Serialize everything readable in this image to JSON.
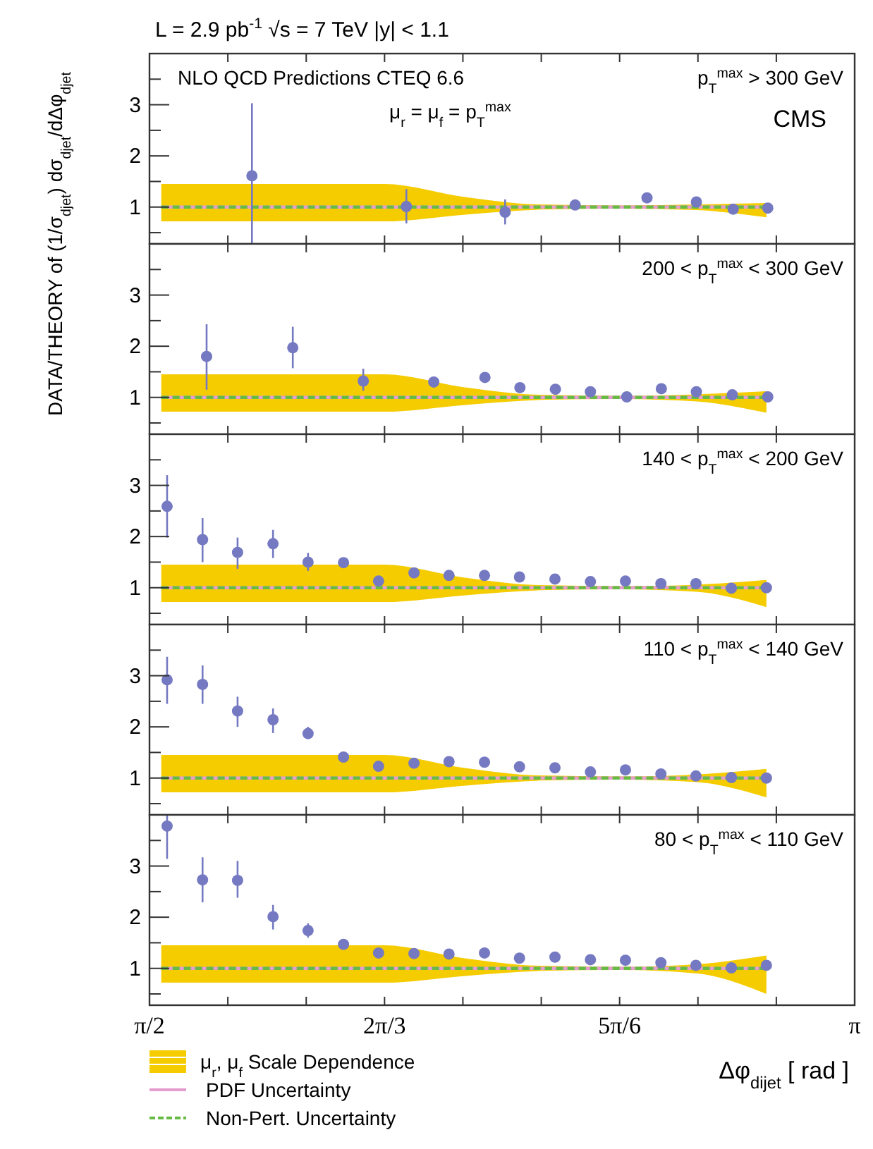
{
  "chart_data": [
    {
      "type": "scatter",
      "title": "L = 2.9 pb$^{-1}$   √s = 7 TeV   |y| < 1.1",
      "ylabel": "DATA/THEORY of (1/σ$_{djet}$) dσ$_{djet}$/dΔφ$_{djet}$",
      "annotations": [
        "NLO QCD Predictions CTEQ 6.6",
        "μ$_{r}$ = μ$_{f}$ = p$_{T}$$^{max}$",
        "p$_{T}$$^{max}$ > 300 GeV",
        "CMS"
      ],
      "tick_labels": "y",
      "xlim": [
        1.5708,
        3.1416
      ],
      "xticks": [
        {
          "value": 1.5708,
          "label": null
        },
        {
          "value": 1.7453,
          "label": null
        },
        {
          "value": 1.9199,
          "label": null
        },
        {
          "value": 2.0944,
          "label": null
        },
        {
          "value": 2.2689,
          "label": null
        },
        {
          "value": 2.4435,
          "label": null
        },
        {
          "value": 2.618,
          "label": null
        },
        {
          "value": 2.7925,
          "label": null
        },
        {
          "value": 2.9671,
          "label": null
        },
        {
          "value": 3.1416,
          "label": null
        }
      ],
      "ylim": [
        0.28,
        4.0
      ],
      "yticks": [
        {
          "value": 0.5,
          "label": null
        },
        1,
        {
          "value": 1.5,
          "label": null
        },
        2,
        {
          "value": 2.5,
          "label": null
        },
        3,
        {
          "value": 3.5,
          "label": null
        }
      ],
      "series": [
        {
          "type": "line",
          "color": "#f5cc00",
          "x": [
            1.597,
            2.094,
            2.27,
            2.44,
            2.62,
            2.79,
            2.945
          ],
          "values": [
            null,
            null,
            null,
            null,
            null,
            null,
            null
          ],
          "lower": [
            0.72,
            0.72,
            0.85,
            0.95,
            0.97,
            0.94,
            0.8
          ],
          "upper": [
            1.45,
            1.45,
            1.2,
            1.05,
            1.03,
            1.05,
            1.08
          ]
        },
        {
          "type": "line",
          "color": "#e59ccf",
          "x": [
            1.597,
            2.094,
            2.27,
            2.44,
            2.62,
            2.79,
            2.945
          ],
          "values": [
            1,
            1,
            1,
            1,
            1,
            1,
            1
          ]
        },
        {
          "type": "line",
          "color": "#66bb44",
          "line_style": "dashed",
          "x": [
            1.597,
            2.094,
            2.27,
            2.44,
            2.62,
            2.79,
            2.945
          ],
          "values": [
            1,
            1,
            1,
            1,
            1,
            1,
            1
          ]
        },
        {
          "type": "scatter",
          "marker": "circle",
          "color": "#7479c2",
          "x": [
            1.799,
            2.143,
            2.363,
            2.519,
            2.679,
            2.789,
            2.871,
            2.948
          ],
          "values": [
            1.61,
            1.01,
            0.9,
            1.04,
            1.18,
            1.1,
            0.96,
            0.98
          ],
          "errors": [
            [
              0.28,
              3.03
            ],
            [
              0.68,
              1.35
            ],
            [
              0.66,
              1.15
            ],
            [
              0.95,
              1.15
            ],
            null,
            null,
            null,
            null
          ]
        }
      ]
    },
    {
      "type": "scatter",
      "annotations": [
        "200 < p$_{T}$$^{max}$ < 300 GeV"
      ],
      "tick_labels": "y",
      "xlim": [
        1.5708,
        3.1416
      ],
      "xticks": [
        {
          "value": 1.5708,
          "label": null
        },
        {
          "value": 1.7453,
          "label": null
        },
        {
          "value": 1.9199,
          "label": null
        },
        {
          "value": 2.0944,
          "label": null
        },
        {
          "value": 2.2689,
          "label": null
        },
        {
          "value": 2.4435,
          "label": null
        },
        {
          "value": 2.618,
          "label": null
        },
        {
          "value": 2.7925,
          "label": null
        },
        {
          "value": 2.9671,
          "label": null
        },
        {
          "value": 3.1416,
          "label": null
        }
      ],
      "ylim": [
        0.28,
        4.0
      ],
      "yticks": [
        {
          "value": 0.5,
          "label": null
        },
        1,
        {
          "value": 1.5,
          "label": null
        },
        2,
        {
          "value": 2.5,
          "label": null
        },
        3,
        {
          "value": 3.5,
          "label": null
        }
      ],
      "series": [
        {
          "type": "line",
          "color": "#f5cc00",
          "x": [
            1.597,
            2.094,
            2.27,
            2.44,
            2.62,
            2.79,
            2.945
          ],
          "values": [
            null,
            null,
            null,
            null,
            null,
            null,
            null
          ],
          "lower": [
            0.72,
            0.72,
            0.85,
            0.95,
            0.97,
            0.92,
            0.7
          ],
          "upper": [
            1.45,
            1.45,
            1.2,
            1.05,
            1.03,
            1.06,
            1.12
          ]
        },
        {
          "type": "line",
          "color": "#e59ccf",
          "x": [
            1.597,
            2.094,
            2.27,
            2.44,
            2.62,
            2.79,
            2.945
          ],
          "values": [
            1,
            1,
            1,
            1,
            1,
            1,
            1
          ]
        },
        {
          "type": "line",
          "color": "#66bb44",
          "line_style": "dashed",
          "x": [
            1.597,
            2.094,
            2.27,
            2.44,
            2.62,
            2.79,
            2.945
          ],
          "values": [
            1,
            1,
            1,
            1,
            1,
            1,
            1
          ]
        },
        {
          "type": "scatter",
          "marker": "circle",
          "color": "#7479c2",
          "x": [
            1.698,
            1.89,
            2.047,
            2.204,
            2.318,
            2.396,
            2.475,
            2.553,
            2.634,
            2.711,
            2.789,
            2.869,
            2.948
          ],
          "values": [
            1.8,
            1.97,
            1.32,
            1.3,
            1.39,
            1.19,
            1.16,
            1.11,
            1.01,
            1.17,
            1.11,
            1.05,
            1.01
          ],
          "errors": [
            [
              1.15,
              2.43
            ],
            [
              1.57,
              2.38
            ],
            [
              1.13,
              1.56
            ],
            null,
            null,
            null,
            null,
            null,
            null,
            null,
            null,
            null,
            null
          ]
        }
      ]
    },
    {
      "type": "scatter",
      "annotations": [
        "140 < p$_{T}$$^{max}$ < 200 GeV"
      ],
      "tick_labels": "y",
      "xlim": [
        1.5708,
        3.1416
      ],
      "xticks": [
        {
          "value": 1.5708,
          "label": null
        },
        {
          "value": 1.7453,
          "label": null
        },
        {
          "value": 1.9199,
          "label": null
        },
        {
          "value": 2.0944,
          "label": null
        },
        {
          "value": 2.2689,
          "label": null
        },
        {
          "value": 2.4435,
          "label": null
        },
        {
          "value": 2.618,
          "label": null
        },
        {
          "value": 2.7925,
          "label": null
        },
        {
          "value": 2.9671,
          "label": null
        },
        {
          "value": 3.1416,
          "label": null
        }
      ],
      "ylim": [
        0.28,
        4.0
      ],
      "yticks": [
        {
          "value": 0.5,
          "label": null
        },
        1,
        {
          "value": 1.5,
          "label": null
        },
        2,
        {
          "value": 2.5,
          "label": null
        },
        3,
        {
          "value": 3.5,
          "label": null
        }
      ],
      "series": [
        {
          "type": "line",
          "color": "#f5cc00",
          "x": [
            1.597,
            2.094,
            2.27,
            2.44,
            2.62,
            2.79,
            2.945
          ],
          "values": [
            null,
            null,
            null,
            null,
            null,
            null,
            null
          ],
          "lower": [
            0.72,
            0.72,
            0.85,
            0.95,
            0.97,
            0.92,
            0.62
          ],
          "upper": [
            1.45,
            1.45,
            1.2,
            1.05,
            1.03,
            1.06,
            1.15
          ]
        },
        {
          "type": "line",
          "color": "#e59ccf",
          "x": [
            1.597,
            2.094,
            2.27,
            2.44,
            2.62,
            2.79,
            2.945
          ],
          "values": [
            1,
            1,
            1,
            1,
            1,
            1,
            1
          ]
        },
        {
          "type": "line",
          "color": "#66bb44",
          "line_style": "dashed",
          "x": [
            1.597,
            2.094,
            2.27,
            2.44,
            2.62,
            2.79,
            2.945
          ],
          "values": [
            1,
            1,
            1,
            1,
            1,
            1,
            1
          ]
        },
        {
          "type": "scatter",
          "marker": "circle",
          "color": "#7479c2",
          "x": [
            1.61,
            1.689,
            1.767,
            1.846,
            1.924,
            2.003,
            2.081,
            2.16,
            2.238,
            2.317,
            2.395,
            2.474,
            2.553,
            2.631,
            2.71,
            2.788,
            2.867,
            2.945
          ],
          "values": [
            2.59,
            1.94,
            1.69,
            1.86,
            1.5,
            1.49,
            1.13,
            1.29,
            1.24,
            1.24,
            1.21,
            1.17,
            1.12,
            1.13,
            1.08,
            1.08,
            0.99,
            1.0
          ],
          "errors": [
            [
              1.98,
              3.2
            ],
            [
              1.5,
              2.36
            ],
            [
              1.37,
              1.98
            ],
            [
              1.58,
              2.13
            ],
            [
              1.33,
              1.68
            ],
            null,
            null,
            null,
            null,
            null,
            null,
            null,
            null,
            null,
            null,
            null,
            null,
            null
          ]
        }
      ]
    },
    {
      "type": "scatter",
      "annotations": [
        "110 < p$_{T}$$^{max}$ < 140 GeV"
      ],
      "tick_labels": "y",
      "xlim": [
        1.5708,
        3.1416
      ],
      "xticks": [
        {
          "value": 1.5708,
          "label": null
        },
        {
          "value": 1.7453,
          "label": null
        },
        {
          "value": 1.9199,
          "label": null
        },
        {
          "value": 2.0944,
          "label": null
        },
        {
          "value": 2.2689,
          "label": null
        },
        {
          "value": 2.4435,
          "label": null
        },
        {
          "value": 2.618,
          "label": null
        },
        {
          "value": 2.7925,
          "label": null
        },
        {
          "value": 2.9671,
          "label": null
        },
        {
          "value": 3.1416,
          "label": null
        }
      ],
      "ylim": [
        0.28,
        4.0
      ],
      "yticks": [
        {
          "value": 0.5,
          "label": null
        },
        1,
        {
          "value": 1.5,
          "label": null
        },
        2,
        {
          "value": 2.5,
          "label": null
        },
        3,
        {
          "value": 3.5,
          "label": null
        }
      ],
      "series": [
        {
          "type": "line",
          "color": "#f5cc00",
          "x": [
            1.597,
            2.094,
            2.27,
            2.44,
            2.62,
            2.79,
            2.945
          ],
          "values": [
            null,
            null,
            null,
            null,
            null,
            null,
            null
          ],
          "lower": [
            0.72,
            0.72,
            0.85,
            0.95,
            0.97,
            0.92,
            0.62
          ],
          "upper": [
            1.45,
            1.45,
            1.2,
            1.05,
            1.03,
            1.07,
            1.18
          ]
        },
        {
          "type": "line",
          "color": "#e59ccf",
          "x": [
            1.597,
            2.094,
            2.27,
            2.44,
            2.62,
            2.79,
            2.945
          ],
          "values": [
            1,
            1,
            1,
            1,
            1,
            1,
            1
          ]
        },
        {
          "type": "line",
          "color": "#66bb44",
          "line_style": "dashed",
          "x": [
            1.597,
            2.094,
            2.27,
            2.44,
            2.62,
            2.79,
            2.945
          ],
          "values": [
            1,
            1,
            1,
            1,
            1,
            1,
            1
          ]
        },
        {
          "type": "scatter",
          "marker": "circle",
          "color": "#7479c2",
          "x": [
            1.61,
            1.689,
            1.767,
            1.846,
            1.924,
            2.003,
            2.081,
            2.16,
            2.238,
            2.317,
            2.395,
            2.474,
            2.553,
            2.631,
            2.71,
            2.788,
            2.867,
            2.945
          ],
          "values": [
            2.92,
            2.83,
            2.31,
            2.14,
            1.87,
            1.41,
            1.23,
            1.29,
            1.32,
            1.31,
            1.22,
            1.2,
            1.12,
            1.16,
            1.08,
            1.04,
            1.01,
            1.0
          ],
          "errors": [
            [
              2.45,
              3.37
            ],
            [
              2.45,
              3.2
            ],
            [
              2.0,
              2.59
            ],
            [
              1.88,
              2.36
            ],
            [
              1.76,
              2.0
            ],
            null,
            null,
            null,
            null,
            null,
            null,
            null,
            null,
            null,
            null,
            null,
            null,
            null
          ]
        }
      ]
    },
    {
      "type": "scatter",
      "annotations": [
        "80 < p$_{T}$$^{max}$ < 110 GeV"
      ],
      "xlabel": "Δφ$_{dijet}$ [ rad ]",
      "legend": "bottom left",
      "xlim": [
        1.5708,
        3.1416
      ],
      "xticks": [
        {
          "value": 1.5708,
          "label": "π/2"
        },
        {
          "value": 1.7453,
          "label": null
        },
        {
          "value": 1.9199,
          "label": null
        },
        {
          "value": 2.0944,
          "label": "2π/3"
        },
        {
          "value": 2.2689,
          "label": null
        },
        {
          "value": 2.4435,
          "label": null
        },
        {
          "value": 2.618,
          "label": "5π/6"
        },
        {
          "value": 2.7925,
          "label": null
        },
        {
          "value": 2.9671,
          "label": null
        },
        {
          "value": 3.1416,
          "label": "π"
        }
      ],
      "ylim": [
        0.28,
        4.0
      ],
      "yticks": [
        {
          "value": 0.5,
          "label": null
        },
        1,
        {
          "value": 1.5,
          "label": null
        },
        2,
        {
          "value": 2.5,
          "label": null
        },
        3,
        {
          "value": 3.5,
          "label": null
        }
      ],
      "series": [
        {
          "type": "line",
          "name": "μ$_{r}$, μ$_{f}$ Scale Dependence",
          "color": "#f5cc00",
          "x": [
            1.597,
            2.094,
            2.27,
            2.44,
            2.62,
            2.79,
            2.945
          ],
          "values": [
            null,
            null,
            null,
            null,
            null,
            null,
            null
          ],
          "lower": [
            0.72,
            0.72,
            0.85,
            0.95,
            0.97,
            0.9,
            0.5
          ],
          "upper": [
            1.45,
            1.45,
            1.2,
            1.05,
            1.03,
            1.08,
            1.25
          ]
        },
        {
          "type": "line",
          "name": "PDF Uncertainty",
          "color": "#e59ccf",
          "x": [
            1.597,
            2.094,
            2.27,
            2.44,
            2.62,
            2.79,
            2.945
          ],
          "values": [
            1,
            1,
            1,
            1,
            1,
            1,
            1
          ]
        },
        {
          "type": "line",
          "name": "Non-Pert. Uncertainty",
          "color": "#66bb44",
          "line_style": "dashed",
          "x": [
            1.597,
            2.094,
            2.27,
            2.44,
            2.62,
            2.79,
            2.945
          ],
          "values": [
            1,
            1,
            1,
            1,
            1,
            1,
            1
          ]
        },
        {
          "type": "scatter",
          "marker": "circle",
          "color": "#7479c2",
          "x": [
            1.61,
            1.689,
            1.767,
            1.846,
            1.924,
            2.003,
            2.081,
            2.16,
            2.238,
            2.317,
            2.395,
            2.474,
            2.553,
            2.631,
            2.71,
            2.788,
            2.867,
            2.945
          ],
          "values": [
            3.78,
            2.73,
            2.72,
            2.01,
            1.74,
            1.47,
            1.3,
            1.29,
            1.28,
            1.3,
            1.2,
            1.22,
            1.17,
            1.16,
            1.11,
            1.06,
            1.01,
            1.06
          ],
          "errors": [
            [
              3.14,
              4.0
            ],
            [
              2.29,
              3.17
            ],
            [
              2.38,
              3.1
            ],
            [
              1.76,
              2.24
            ],
            [
              1.6,
              1.88
            ],
            null,
            null,
            null,
            null,
            null,
            null,
            null,
            null,
            null,
            null,
            null,
            null,
            null
          ]
        }
      ]
    }
  ]
}
